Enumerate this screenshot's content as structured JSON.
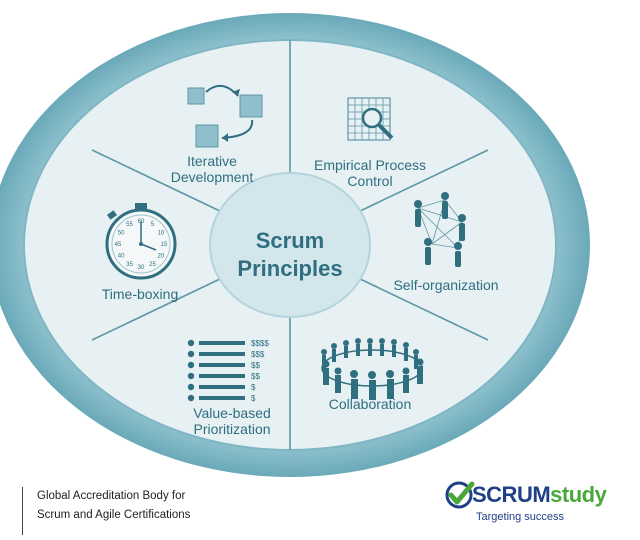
{
  "diagram": {
    "center_line1": "Scrum",
    "center_line2": "Principles",
    "segments": {
      "iterative_line1": "Iterative",
      "iterative_line2": "Development",
      "empirical_line1": "Empirical Process",
      "empirical_line2": "Control",
      "self_org": "Self-organization",
      "collaboration": "Collaboration",
      "value_line1": "Value-based",
      "value_line2": "Prioritization",
      "timeboxing": "Time-boxing"
    },
    "value_icon_labels": [
      "$$$$",
      "$$$",
      "$$",
      "$$",
      "$",
      "$"
    ],
    "stopwatch_numbers": [
      "60",
      "5",
      "10",
      "15",
      "20",
      "25",
      "30",
      "35",
      "40",
      "45",
      "50",
      "55"
    ],
    "colors": {
      "ring": "#8fc3d0",
      "ring_dark": "#6aa9b9",
      "segment_fill": "#e7f0f3",
      "center_fill": "#d2e6ec",
      "label": "#2f6f80"
    }
  },
  "footer": {
    "line1": "Global Accreditation Body for",
    "line2": "Scrum and Agile Certifications"
  },
  "brand": {
    "name_part1": "SCRUM",
    "name_part2": "study",
    "tagline": "Targeting success",
    "icon": "checkmark-icon"
  }
}
